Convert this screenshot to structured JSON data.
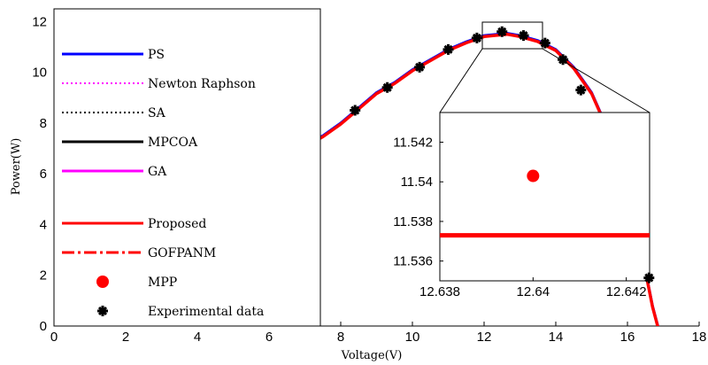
{
  "chart_data": [
    {
      "type": "line",
      "xlabel": "Voltage(V)",
      "ylabel": "Power(W)",
      "xlim": [
        0,
        18
      ],
      "ylim": [
        0,
        12.5
      ],
      "xticks": [
        "0",
        "2",
        "4",
        "6",
        "8",
        "10",
        "12",
        "14",
        "16",
        "18"
      ],
      "yticks": [
        "0",
        "2",
        "4",
        "6",
        "8",
        "10",
        "12"
      ],
      "grid": false,
      "legend_position": "left, overlaying the plot",
      "legend": [
        {
          "name": "PS",
          "color": "#0000ff",
          "style": "solid"
        },
        {
          "name": "Newton Raphson",
          "color": "#ff00ff",
          "style": "dotted"
        },
        {
          "name": "SA",
          "color": "#000000",
          "style": "dotted"
        },
        {
          "name": "MPCOA",
          "color": "#000000",
          "style": "solid"
        },
        {
          "name": "GA",
          "color": "#ff00ff",
          "style": "solid"
        },
        {
          "name": "Proposed",
          "color": "#ff0000",
          "style": "solid"
        },
        {
          "name": "GOFPANM",
          "color": "#ff0000",
          "style": "dash-dot"
        },
        {
          "name": "MPP",
          "color": "#ff0000",
          "style": "marker-dot"
        },
        {
          "name": "Experimental data",
          "color": "#000000",
          "style": "marker-star"
        }
      ],
      "curve": {
        "x": [
          7.0,
          7.5,
          8.0,
          8.5,
          9.0,
          9.5,
          10.0,
          10.5,
          11.0,
          11.5,
          12.0,
          12.5,
          12.64,
          13.0,
          13.5,
          14.0,
          14.5,
          15.0,
          15.5,
          16.0,
          16.5,
          16.7,
          16.85
        ],
        "y": [
          7.1,
          7.5,
          8.0,
          8.6,
          9.2,
          9.6,
          10.1,
          10.5,
          10.9,
          11.2,
          11.45,
          11.52,
          11.54,
          11.45,
          11.25,
          10.9,
          10.2,
          9.2,
          7.6,
          5.3,
          2.2,
          0.8,
          0.0
        ]
      },
      "experimental_data": {
        "x": [
          8.4,
          9.3,
          10.2,
          11.0,
          11.8,
          12.5,
          13.1,
          13.7,
          14.2,
          14.7,
          16.6
        ],
        "y": [
          8.5,
          9.4,
          10.2,
          10.9,
          11.35,
          11.6,
          11.45,
          11.15,
          10.5,
          9.3,
          1.9
        ]
      }
    },
    {
      "type": "line",
      "title": "",
      "xlim": [
        12.638,
        12.6425
      ],
      "ylim": [
        11.535,
        11.5435
      ],
      "xticks": [
        "12.638",
        "12.64",
        "12.642"
      ],
      "yticks": [
        "11.536",
        "11.538",
        "11.54",
        "11.542"
      ],
      "grid": false,
      "proposed_line": {
        "x": [
          12.638,
          12.6425
        ],
        "y": [
          11.5373,
          11.5373
        ]
      },
      "mpp_point": {
        "x": 12.64,
        "y": 11.5403
      }
    }
  ]
}
